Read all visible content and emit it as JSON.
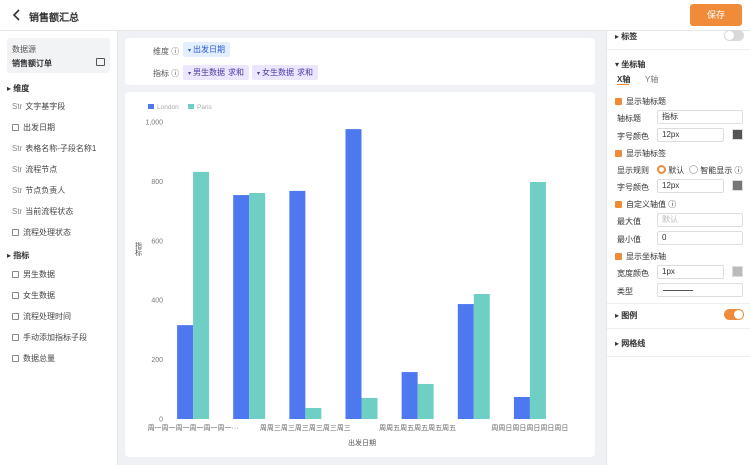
{
  "header": {
    "title": "销售额汇总",
    "save": "保存"
  },
  "sidebar": {
    "source_label": "数据源",
    "source": "销售额订单",
    "dimension_title": "维度",
    "dimensions": [
      {
        "type": "Str",
        "name": "文字基字段"
      },
      {
        "name": "出发日期"
      },
      {
        "type": "Str",
        "name": "表格名称-子段名称1"
      },
      {
        "type": "Str",
        "name": "流程节点"
      },
      {
        "type": "Str",
        "name": "节点负责人"
      },
      {
        "type": "Str",
        "name": "当前流程状态"
      },
      {
        "name": "流程处理状态"
      }
    ],
    "metric_title": "指标",
    "metrics": [
      "男生数据",
      "女生数据",
      "流程处理时间",
      "手动添加指标子段",
      "数据总量"
    ]
  },
  "config": {
    "dimension_label": "维度",
    "dimension_chips": [
      "出发日期"
    ],
    "metric_label": "指标",
    "metric_chips": [
      {
        "name": "男生数据",
        "agg": "求和"
      },
      {
        "name": "女生数据",
        "agg": "求和"
      }
    ]
  },
  "chart_data": {
    "type": "bar",
    "categories": [
      "周一周一周一周一周一周一···",
      null,
      "周周三周三周三周三周三周三",
      null,
      "周周五周五周五周五周五",
      null,
      "周周日周日周日周日周日"
    ],
    "series": [
      {
        "name": "London",
        "color": "#4e78f0",
        "values": [
          316,
          754,
          768,
          976,
          158,
          387,
          74
        ]
      },
      {
        "name": "Paris",
        "color": "#6fcfc5",
        "values": [
          832,
          761,
          37,
          71,
          118,
          421,
          798
        ]
      }
    ],
    "ylim": [
      0,
      1000
    ],
    "yticks": [
      0,
      200,
      400,
      600,
      800,
      {
        "value": 1000,
        "label": "1,000"
      }
    ],
    "y_label": "指标",
    "x_label": "出发日期",
    "grid": false,
    "legend": "top-left"
  },
  "settings": {
    "label_section": "标签",
    "axis_section": "坐标轴",
    "tabs": [
      "X轴",
      "Y轴"
    ],
    "show_title": "显示轴标题",
    "title_label": "轴标题",
    "title_value": "指标",
    "font_label": "字号颜色",
    "font_size": "12px",
    "show_labels": "显示轴标签",
    "rule_label": "显示规则",
    "rule_options": [
      "默认",
      "智能显示"
    ],
    "font_label_2": "字号颜色",
    "font_size_2": "12px",
    "custom_axis": "自定义轴值",
    "max_label": "最大值",
    "max_placeholder": "默认",
    "min_label": "最小值",
    "min_value": "0",
    "show_axis": "显示坐标轴",
    "width_label": "宽度颜色",
    "width_value": "1px",
    "type_label": "类型",
    "legend_section": "图例",
    "grid_section": "网格线"
  }
}
